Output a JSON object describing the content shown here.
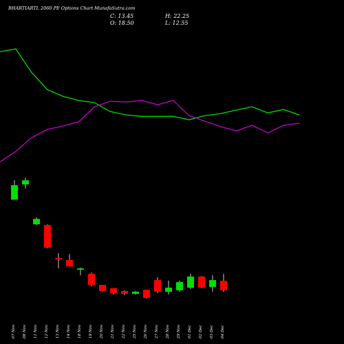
{
  "chart_data": {
    "type": "candlestick",
    "title": "BHARTIARTL 2060 PE Options Chart MunafaSutra.com",
    "ohlc_labels": [
      "C: 13.45",
      "O: 18.50",
      "H: 22.25",
      "L: 12.55"
    ],
    "categories": [
      "07 Nov",
      "08 Nov",
      "11 Nov",
      "12 Nov",
      "13 Nov",
      "14 Nov",
      "18 Nov",
      "19 Nov",
      "20 Nov",
      "21 Nov",
      "22 Nov",
      "25 Nov",
      "26 Nov",
      "27 Nov",
      "28 Nov",
      "29 Nov",
      "01 Dec",
      "02 Dec",
      "03 Dec",
      "04 Dec"
    ],
    "open": [
      62.3,
      70.5,
      49.0,
      48.6,
      30.8,
      29.7,
      24.5,
      22.3,
      16.3,
      14.5,
      13.0,
      11.5,
      13.7,
      18.9,
      12.6,
      13.4,
      14.8,
      20.8,
      15.2,
      18.5
    ],
    "high": [
      72.7,
      74.2,
      52.7,
      49.0,
      33.4,
      33.0,
      25.6,
      23.0,
      16.3,
      14.5,
      13.4,
      13.0,
      13.7,
      20.4,
      18.6,
      18.6,
      22.3,
      21.1,
      21.5,
      22.25
    ],
    "low": [
      62.3,
      68.3,
      48.6,
      36.0,
      25.2,
      26.3,
      21.5,
      15.6,
      12.6,
      11.1,
      10.8,
      11.1,
      8.9,
      11.9,
      11.1,
      12.6,
      14.1,
      14.5,
      12.6,
      12.55
    ],
    "close": [
      70.1,
      72.7,
      51.9,
      36.4,
      30.1,
      26.3,
      25.2,
      16.3,
      13.0,
      11.9,
      11.5,
      12.6,
      9.3,
      12.6,
      14.8,
      17.8,
      20.8,
      14.8,
      18.9,
      13.45
    ],
    "up_color": "#00e000",
    "down_color": "#ff0000",
    "series": [
      {
        "color": "#00dd00",
        "values": [
          142.1,
          143.6,
          131.0,
          121.7,
          118.0,
          115.8,
          114.6,
          109.8,
          108.0,
          107.2,
          107.2,
          107.2,
          105.4,
          107.6,
          108.7,
          110.6,
          112.4,
          109.1,
          110.9,
          108.0
        ]
      },
      {
        "color": "#cc00cc",
        "values": [
          82.7,
          88.3,
          95.7,
          100.2,
          102.0,
          104.3,
          112.4,
          115.4,
          115.0,
          115.8,
          113.5,
          115.8,
          107.6,
          104.6,
          101.7,
          99.4,
          102.4,
          98.3,
          102.4,
          103.5
        ]
      }
    ],
    "ylim": [
      0,
      170
    ]
  }
}
